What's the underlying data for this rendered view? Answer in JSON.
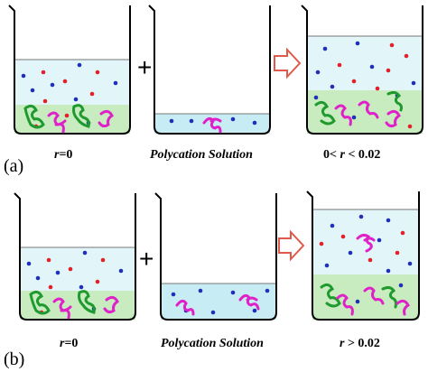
{
  "panels": [
    {
      "label": "(a)",
      "operator": "+",
      "captions": [
        {
          "var": "r",
          "rest": "=0"
        },
        {
          "text": "Polycation Solution"
        },
        {
          "pre": "0< ",
          "var": "r",
          "post": " < 0.02"
        }
      ]
    },
    {
      "label": "(b)",
      "operator": "+",
      "captions": [
        {
          "var": "r",
          "rest": "=0"
        },
        {
          "text": "Polycation Solution"
        },
        {
          "var": "r",
          "post": " > 0.02"
        }
      ]
    }
  ],
  "colors": {
    "liquid": "#e2f5f8",
    "liquid_low": "#c8ecf3",
    "gel": "#c8ecc0",
    "beaker": "#000000",
    "blue_dot": "#1f2fb8",
    "red_dot": "#e0202a",
    "polymer_green": "#1f9a2e",
    "polymer_magenta": "#e020c8",
    "arrow": "#e05a4a"
  }
}
